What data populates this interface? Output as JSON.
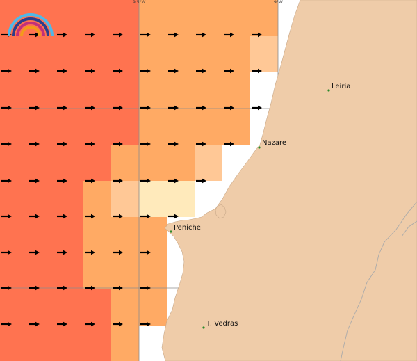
{
  "map": {
    "grid_labels": {
      "lon_9_5": "9.5°W",
      "lon_9": "9°W"
    },
    "cities": [
      {
        "name": "Leiria"
      },
      {
        "name": "Nazare"
      },
      {
        "name": "Peniche"
      },
      {
        "name": "T. Vedras"
      }
    ],
    "colors": {
      "land": "#efcca9",
      "sea_white": "#ffffff",
      "level_very_high": "#ff7350",
      "level_high": "#ffaa64",
      "level_medium": "#ffc896",
      "level_low": "#ffeabb",
      "arrow": "#000000",
      "city_dot": "#2a8a2a"
    },
    "logo": {
      "icon": "rainbow-logo-icon"
    }
  }
}
